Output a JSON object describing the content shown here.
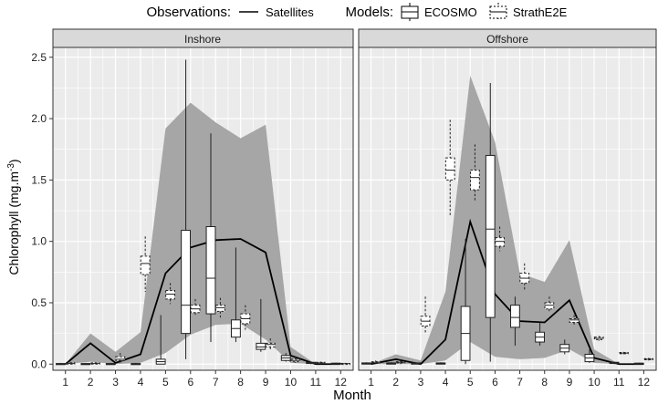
{
  "legend": {
    "observations_title": "Observations:",
    "observations_item": "Satellites",
    "models_title": "Models:",
    "model_items": [
      "ECOSMO",
      "StrathE2E"
    ]
  },
  "chart_data": {
    "type": "box",
    "xlabel": "Month",
    "ylabel": "Chlorophyll (mg.m",
    "ylabel_superscript": "-3",
    "ylabel_close": ")",
    "ylim": [
      -0.05,
      2.58
    ],
    "yticks": [
      "0.0",
      "0.5",
      "1.0",
      "1.5",
      "2.0",
      "2.5"
    ],
    "categories": [
      "1",
      "2",
      "3",
      "4",
      "5",
      "6",
      "7",
      "8",
      "9",
      "10",
      "11",
      "12"
    ],
    "colors": {
      "band": "#a6a6a6",
      "panel_bg": "#ebebeb",
      "grid": "#ffffff",
      "line": "#000000"
    },
    "panels": [
      {
        "title": "Inshore",
        "satellite": {
          "mean": [
            0.0,
            0.17,
            0.01,
            0.08,
            0.74,
            0.95,
            1.01,
            1.02,
            0.91,
            0.07,
            0.0,
            0.0
          ],
          "lower": [
            0.0,
            0.02,
            0.0,
            0.01,
            0.09,
            0.24,
            0.32,
            0.33,
            0.2,
            0.01,
            0.0,
            0.0
          ],
          "upper": [
            0.0,
            0.25,
            0.1,
            0.26,
            1.92,
            2.13,
            1.97,
            1.84,
            1.95,
            0.14,
            0.0,
            0.0
          ]
        },
        "ecosmo": [
          {
            "min": 0.0,
            "q1": 0.0,
            "median": 0.0,
            "q3": 0.005,
            "max": 0.01
          },
          {
            "min": 0.0,
            "q1": 0.0,
            "median": 0.0,
            "q3": 0.005,
            "max": 0.01
          },
          {
            "min": 0.0,
            "q1": 0.0,
            "median": 0.0,
            "q3": 0.005,
            "max": 0.01
          },
          {
            "min": 0.0,
            "q1": 0.0,
            "median": 0.0,
            "q3": 0.005,
            "max": 0.01
          },
          {
            "min": 0.0,
            "q1": 0.0,
            "median": 0.02,
            "q3": 0.04,
            "max": 0.4
          },
          {
            "min": 0.04,
            "q1": 0.25,
            "median": 0.48,
            "q3": 1.09,
            "max": 2.48
          },
          {
            "min": 0.18,
            "q1": 0.41,
            "median": 0.7,
            "q3": 1.12,
            "max": 1.88
          },
          {
            "min": 0.18,
            "q1": 0.22,
            "median": 0.29,
            "q3": 0.36,
            "max": 0.95
          },
          {
            "min": 0.1,
            "q1": 0.12,
            "median": 0.14,
            "q3": 0.17,
            "max": 0.53
          },
          {
            "min": 0.02,
            "q1": 0.03,
            "median": 0.05,
            "q3": 0.07,
            "max": 0.09
          },
          {
            "min": 0.0,
            "q1": 0.005,
            "median": 0.01,
            "q3": 0.015,
            "max": 0.02
          },
          {
            "min": 0.0,
            "q1": 0.003,
            "median": 0.005,
            "q3": 0.008,
            "max": 0.012
          }
        ],
        "strathe2e": [
          {
            "min": 0.0,
            "q1": 0.0,
            "median": 0.005,
            "q3": 0.01,
            "max": 0.015
          },
          {
            "min": 0.0,
            "q1": 0.0,
            "median": 0.005,
            "q3": 0.01,
            "max": 0.015
          },
          {
            "min": 0.01,
            "q1": 0.03,
            "median": 0.04,
            "q3": 0.06,
            "max": 0.09
          },
          {
            "min": 0.59,
            "q1": 0.73,
            "median": 0.82,
            "q3": 0.88,
            "max": 1.04
          },
          {
            "min": 0.49,
            "q1": 0.53,
            "median": 0.57,
            "q3": 0.6,
            "max": 0.66
          },
          {
            "min": 0.39,
            "q1": 0.42,
            "median": 0.45,
            "q3": 0.48,
            "max": 0.53
          },
          {
            "min": 0.38,
            "q1": 0.43,
            "median": 0.46,
            "q3": 0.48,
            "max": 0.54
          },
          {
            "min": 0.28,
            "q1": 0.33,
            "median": 0.37,
            "q3": 0.41,
            "max": 0.48
          },
          {
            "min": 0.11,
            "q1": 0.14,
            "median": 0.16,
            "q3": 0.17,
            "max": 0.21
          },
          {
            "min": 0.01,
            "q1": 0.02,
            "median": 0.03,
            "q3": 0.04,
            "max": 0.06
          },
          {
            "min": 0.0,
            "q1": 0.005,
            "median": 0.01,
            "q3": 0.015,
            "max": 0.02
          },
          {
            "min": 0.0,
            "q1": 0.002,
            "median": 0.004,
            "q3": 0.006,
            "max": 0.01
          }
        ]
      },
      {
        "title": "Offshore",
        "satellite": {
          "mean": [
            0.0,
            0.04,
            0.0,
            0.2,
            1.16,
            0.57,
            0.35,
            0.34,
            0.52,
            0.05,
            0.0,
            0.0
          ],
          "lower": [
            0.0,
            0.0,
            0.0,
            0.03,
            0.18,
            0.06,
            0.04,
            0.05,
            0.12,
            0.01,
            0.0,
            0.0
          ],
          "upper": [
            0.0,
            0.08,
            0.03,
            0.59,
            2.35,
            1.81,
            0.74,
            0.67,
            1.01,
            0.12,
            0.0,
            0.0
          ]
        },
        "ecosmo": [
          {
            "min": 0.0,
            "q1": 0.0,
            "median": 0.005,
            "q3": 0.01,
            "max": 0.015
          },
          {
            "min": 0.0,
            "q1": 0.0,
            "median": 0.005,
            "q3": 0.01,
            "max": 0.015
          },
          {
            "min": 0.0,
            "q1": 0.0,
            "median": 0.005,
            "q3": 0.01,
            "max": 0.015
          },
          {
            "min": 0.0,
            "q1": 0.0,
            "median": 0.005,
            "q3": 0.01,
            "max": 0.015
          },
          {
            "min": 0.0,
            "q1": 0.03,
            "median": 0.25,
            "q3": 0.47,
            "max": 1.02
          },
          {
            "min": 0.02,
            "q1": 0.38,
            "median": 1.1,
            "q3": 1.7,
            "max": 2.29
          },
          {
            "min": 0.15,
            "q1": 0.3,
            "median": 0.38,
            "q3": 0.48,
            "max": 0.55
          },
          {
            "min": 0.15,
            "q1": 0.18,
            "median": 0.22,
            "q3": 0.26,
            "max": 0.34
          },
          {
            "min": 0.08,
            "q1": 0.1,
            "median": 0.13,
            "q3": 0.16,
            "max": 0.2
          },
          {
            "min": 0.01,
            "q1": 0.02,
            "median": 0.05,
            "q3": 0.08,
            "max": 0.12
          },
          {
            "min": 0.0,
            "q1": 0.005,
            "median": 0.01,
            "q3": 0.015,
            "max": 0.02
          },
          {
            "min": 0.0,
            "q1": 0.003,
            "median": 0.005,
            "q3": 0.008,
            "max": 0.012
          }
        ],
        "strathe2e": [
          {
            "min": 0.0,
            "q1": 0.01,
            "median": 0.015,
            "q3": 0.02,
            "max": 0.03
          },
          {
            "min": 0.0,
            "q1": 0.01,
            "median": 0.015,
            "q3": 0.02,
            "max": 0.03
          },
          {
            "min": 0.25,
            "q1": 0.31,
            "median": 0.35,
            "q3": 0.39,
            "max": 0.55
          },
          {
            "min": 1.21,
            "q1": 1.5,
            "median": 1.58,
            "q3": 1.68,
            "max": 1.99
          },
          {
            "min": 1.32,
            "q1": 1.42,
            "median": 1.52,
            "q3": 1.58,
            "max": 1.79
          },
          {
            "min": 0.92,
            "q1": 0.96,
            "median": 1.0,
            "q3": 1.03,
            "max": 1.12
          },
          {
            "min": 0.6,
            "q1": 0.66,
            "median": 0.7,
            "q3": 0.74,
            "max": 0.82
          },
          {
            "min": 0.42,
            "q1": 0.45,
            "median": 0.48,
            "q3": 0.5,
            "max": 0.55
          },
          {
            "min": 0.31,
            "q1": 0.34,
            "median": 0.36,
            "q3": 0.37,
            "max": 0.4
          },
          {
            "min": 0.19,
            "q1": 0.2,
            "median": 0.21,
            "q3": 0.22,
            "max": 0.23
          },
          {
            "min": 0.08,
            "q1": 0.085,
            "median": 0.09,
            "q3": 0.095,
            "max": 0.1
          },
          {
            "min": 0.03,
            "q1": 0.035,
            "median": 0.04,
            "q3": 0.045,
            "max": 0.05
          }
        ]
      }
    ]
  }
}
